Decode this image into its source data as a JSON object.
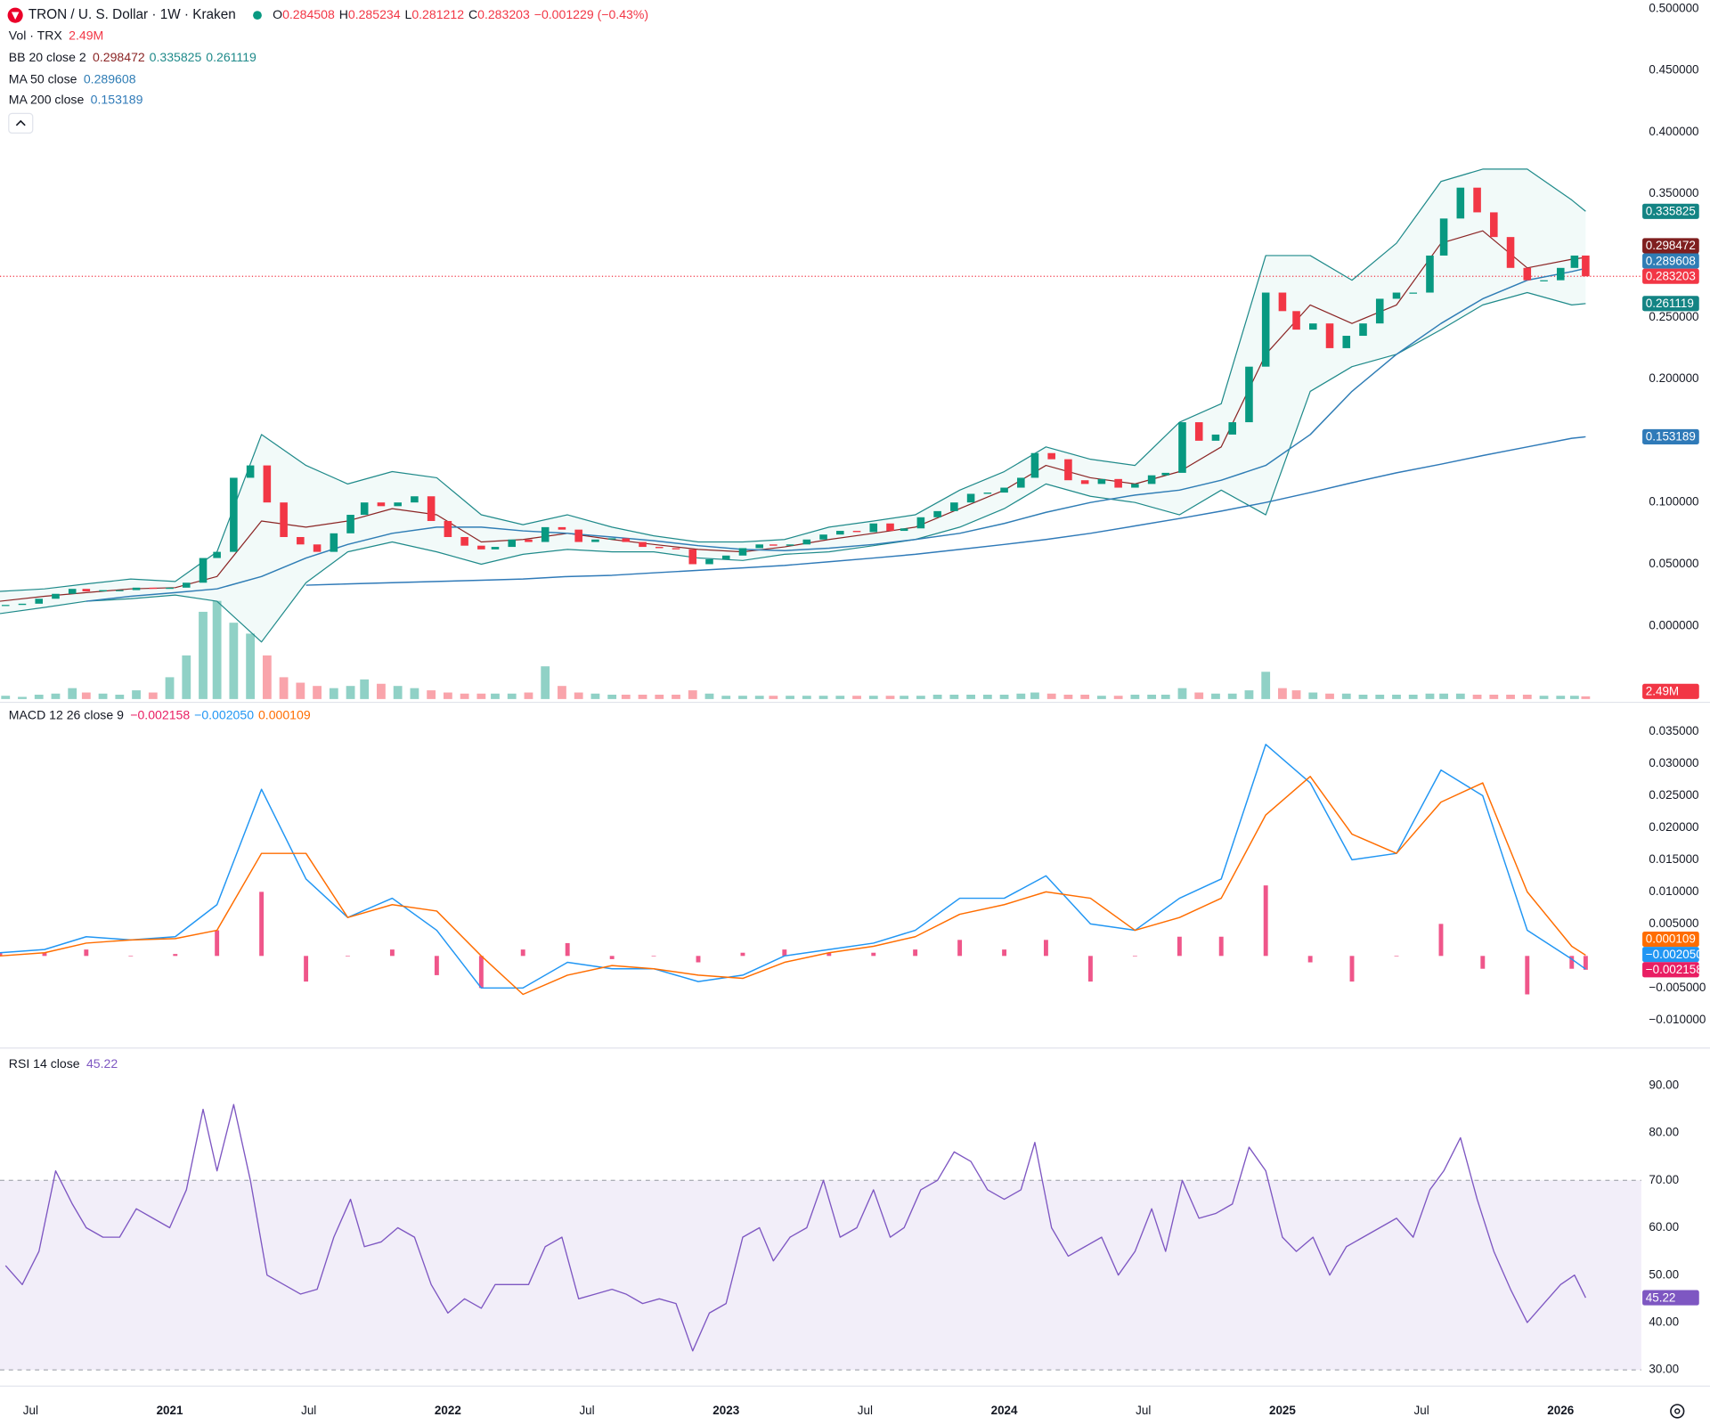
{
  "header": {
    "title": "TRON / U. S. Dollar · 1W · Kraken",
    "ohlc": [
      {
        "label": "O",
        "value": 0.284508
      },
      {
        "label": "H",
        "value": 0.285234
      },
      {
        "label": "L",
        "value": 0.281212
      },
      {
        "label": "C",
        "value": 0.283203
      }
    ],
    "change": "−0.001229 (−0.43%)"
  },
  "chart_data": [
    {
      "type": "candlestick",
      "up_color": "#089981",
      "down_color": "#f23645",
      "grid": false,
      "x": [
        2020.41,
        2020.47,
        2020.53,
        2020.59,
        2020.65,
        2020.7,
        2020.76,
        2020.82,
        2020.88,
        2020.94,
        2021,
        2021.06,
        2021.12,
        2021.17,
        2021.23,
        2021.29,
        2021.35,
        2021.41,
        2021.47,
        2021.53,
        2021.59,
        2021.65,
        2021.7,
        2021.76,
        2021.82,
        2021.88,
        2021.94,
        2022,
        2022.06,
        2022.12,
        2022.17,
        2022.23,
        2022.29,
        2022.35,
        2022.41,
        2022.47,
        2022.53,
        2022.59,
        2022.64,
        2022.7,
        2022.76,
        2022.82,
        2022.88,
        2022.94,
        2023,
        2023.06,
        2023.12,
        2023.17,
        2023.23,
        2023.29,
        2023.35,
        2023.41,
        2023.47,
        2023.53,
        2023.59,
        2023.64,
        2023.7,
        2023.76,
        2023.82,
        2023.88,
        2023.94,
        2024,
        2024.06,
        2024.11,
        2024.17,
        2024.23,
        2024.29,
        2024.35,
        2024.41,
        2024.47,
        2024.53,
        2024.58,
        2024.64,
        2024.7,
        2024.76,
        2024.82,
        2024.88,
        2024.94,
        2025,
        2025.05,
        2025.11,
        2025.17,
        2025.23,
        2025.29,
        2025.35,
        2025.41,
        2025.47,
        2025.53,
        2025.58,
        2025.64,
        2025.7,
        2025.76,
        2025.82,
        2025.88,
        2025.94,
        2026,
        2026.05,
        2026.09
      ],
      "values": [
        0.017,
        0.018,
        0.022,
        0.026,
        0.03,
        0.028,
        0.029,
        0.029,
        0.031,
        0.03,
        0.031,
        0.035,
        0.055,
        0.06,
        0.12,
        0.13,
        0.1,
        0.072,
        0.066,
        0.06,
        0.075,
        0.09,
        0.1,
        0.097,
        0.1,
        0.105,
        0.085,
        0.072,
        0.065,
        0.062,
        0.064,
        0.07,
        0.068,
        0.08,
        0.078,
        0.068,
        0.07,
        0.071,
        0.068,
        0.064,
        0.063,
        0.062,
        0.05,
        0.054,
        0.057,
        0.063,
        0.066,
        0.065,
        0.066,
        0.07,
        0.074,
        0.077,
        0.076,
        0.083,
        0.077,
        0.079,
        0.088,
        0.093,
        0.1,
        0.107,
        0.108,
        0.112,
        0.12,
        0.14,
        0.135,
        0.118,
        0.115,
        0.119,
        0.112,
        0.115,
        0.122,
        0.124,
        0.165,
        0.15,
        0.155,
        0.165,
        0.21,
        0.27,
        0.255,
        0.24,
        0.245,
        0.225,
        0.235,
        0.245,
        0.265,
        0.27,
        0.27,
        0.3,
        0.33,
        0.355,
        0.335,
        0.315,
        0.29,
        0.28,
        0.28,
        0.29,
        0.3,
        0.283203
      ],
      "xlim": [
        2020.39,
        2026.29
      ],
      "xticks": [
        {
          "value": 2020.5,
          "label": "Jul"
        },
        2021,
        {
          "value": 2021.5,
          "label": "Jul"
        },
        2022,
        {
          "value": 2022.5,
          "label": "Jul"
        },
        2023,
        {
          "value": 2023.5,
          "label": "Jul"
        },
        2024,
        {
          "value": 2024.5,
          "label": "Jul"
        },
        2025,
        {
          "value": 2025.5,
          "label": "Jul"
        },
        2026
      ],
      "ylim": [
        -0.061,
        0.507
      ],
      "yticks": [
        {
          "value": 0,
          "label": "0.000000"
        },
        {
          "value": 0.05,
          "label": "0.050000"
        },
        {
          "value": 0.1,
          "label": "0.100000"
        },
        {
          "value": 0.15,
          "label": "0.150000"
        },
        {
          "value": 0.2,
          "label": "0.200000"
        },
        {
          "value": 0.25,
          "label": "0.250000"
        },
        {
          "value": 0.3,
          "label": "0.300000"
        },
        {
          "value": 0.35,
          "label": "0.350000"
        },
        {
          "value": 0.4,
          "label": "0.400000"
        },
        {
          "value": 0.45,
          "label": "0.450000"
        },
        {
          "value": 0.5,
          "label": "0.500000"
        }
      ],
      "volume": {
        "name": "Vol · TRX",
        "last_label": "2.49M",
        "ylim": [
          0,
          100
        ],
        "values": [
          3,
          2,
          4,
          5,
          10,
          6,
          5,
          4,
          8,
          6,
          20,
          40,
          80,
          90,
          70,
          60,
          40,
          20,
          15,
          12,
          10,
          12,
          18,
          14,
          12,
          10,
          8,
          6,
          5,
          5,
          5,
          5,
          6,
          30,
          12,
          6,
          5,
          4,
          4,
          4,
          4,
          4,
          8,
          5,
          3,
          3,
          3,
          3,
          3,
          3,
          3,
          3,
          3,
          3,
          3,
          3,
          3,
          4,
          4,
          4,
          4,
          4,
          5,
          6,
          5,
          4,
          4,
          3,
          3,
          4,
          4,
          4,
          10,
          6,
          5,
          5,
          8,
          25,
          10,
          8,
          6,
          5,
          5,
          4,
          4,
          4,
          4,
          5,
          5,
          5,
          4,
          4,
          4,
          4,
          3,
          3,
          3,
          2.49
        ]
      },
      "indicator_x": [
        2020.39,
        2020.55,
        2020.7,
        2020.86,
        2021.02,
        2021.17,
        2021.33,
        2021.49,
        2021.64,
        2021.8,
        2021.96,
        2022.12,
        2022.27,
        2022.43,
        2022.59,
        2022.74,
        2022.9,
        2023.06,
        2023.21,
        2023.37,
        2023.53,
        2023.68,
        2023.84,
        2024,
        2024.15,
        2024.31,
        2024.47,
        2024.63,
        2024.78,
        2024.94,
        2025.1,
        2025.25,
        2025.41,
        2025.57,
        2025.72,
        2025.88,
        2026.04,
        2026.09
      ],
      "bb": {
        "name": "BB 20 close 2",
        "basis_color": "#8b2525",
        "band_color": "#1f8a8a",
        "fill_color": "#089981",
        "basis": [
          0.02,
          0.024,
          0.027,
          0.03,
          0.031,
          0.04,
          0.085,
          0.08,
          0.085,
          0.095,
          0.09,
          0.068,
          0.07,
          0.075,
          0.07,
          0.066,
          0.062,
          0.06,
          0.064,
          0.07,
          0.075,
          0.08,
          0.095,
          0.11,
          0.13,
          0.12,
          0.115,
          0.125,
          0.145,
          0.22,
          0.26,
          0.245,
          0.26,
          0.31,
          0.32,
          0.29,
          0.297,
          0.298472
        ],
        "upper": [
          0.028,
          0.03,
          0.034,
          0.038,
          0.036,
          0.06,
          0.155,
          0.13,
          0.115,
          0.125,
          0.12,
          0.09,
          0.082,
          0.09,
          0.08,
          0.073,
          0.068,
          0.068,
          0.07,
          0.08,
          0.085,
          0.09,
          0.11,
          0.125,
          0.145,
          0.135,
          0.13,
          0.165,
          0.18,
          0.3,
          0.3,
          0.28,
          0.31,
          0.36,
          0.37,
          0.37,
          0.345,
          0.335825
        ],
        "lower": [
          0.01,
          0.015,
          0.02,
          0.022,
          0.025,
          0.02,
          -0.013,
          0.035,
          0.06,
          0.068,
          0.06,
          0.05,
          0.058,
          0.062,
          0.06,
          0.06,
          0.055,
          0.053,
          0.058,
          0.06,
          0.065,
          0.07,
          0.08,
          0.095,
          0.115,
          0.105,
          0.1,
          0.09,
          0.11,
          0.09,
          0.19,
          0.21,
          0.22,
          0.24,
          0.26,
          0.27,
          0.26,
          0.261119
        ]
      },
      "ma": [
        {
          "name": "MA 50 close",
          "color": "#2f7db5",
          "values": [
            null,
            null,
            0.02,
            0.024,
            0.027,
            0.03,
            0.04,
            0.055,
            0.066,
            0.075,
            0.08,
            0.08,
            0.077,
            0.075,
            0.072,
            0.069,
            0.065,
            0.062,
            0.061,
            0.063,
            0.066,
            0.07,
            0.075,
            0.083,
            0.092,
            0.1,
            0.106,
            0.11,
            0.118,
            0.13,
            0.155,
            0.19,
            0.22,
            0.245,
            0.265,
            0.28,
            0.287,
            0.289608
          ]
        },
        {
          "name": "MA 200 close",
          "color": "#2f7ab8",
          "values": [
            null,
            null,
            null,
            null,
            null,
            null,
            null,
            0.033,
            0.034,
            0.035,
            0.036,
            0.037,
            0.038,
            0.04,
            0.041,
            0.043,
            0.045,
            0.047,
            0.049,
            0.052,
            0.055,
            0.058,
            0.062,
            0.066,
            0.07,
            0.075,
            0.081,
            0.087,
            0.093,
            0.1,
            0.108,
            0.116,
            0.124,
            0.131,
            0.138,
            0.145,
            0.152,
            0.153189
          ]
        }
      ]
    },
    {
      "type": "macd",
      "name": "MACD 12 26 close 9",
      "x": [
        2020.39,
        2020.55,
        2020.7,
        2020.86,
        2021.02,
        2021.17,
        2021.33,
        2021.49,
        2021.64,
        2021.8,
        2021.96,
        2022.12,
        2022.27,
        2022.43,
        2022.59,
        2022.74,
        2022.9,
        2023.06,
        2023.21,
        2023.37,
        2023.53,
        2023.68,
        2023.84,
        2024,
        2024.15,
        2024.31,
        2024.47,
        2024.63,
        2024.78,
        2024.94,
        2025.1,
        2025.25,
        2025.41,
        2025.57,
        2025.72,
        2025.88,
        2026.04,
        2026.09
      ],
      "histogram": {
        "color": "#e91e63",
        "values": [
          0.0005,
          0.0005,
          0.001,
          0,
          0.0003,
          0.004,
          0.01,
          -0.004,
          0,
          0.001,
          -0.003,
          -0.005,
          0.001,
          0.002,
          -0.0005,
          0,
          -0.001,
          0.0005,
          0.001,
          0.0005,
          0.0005,
          0.001,
          0.0025,
          0.001,
          0.0025,
          -0.004,
          0,
          0.003,
          0.003,
          0.011,
          -0.001,
          -0.004,
          0,
          0.005,
          -0.002,
          -0.006,
          -0.002,
          -0.002158
        ]
      },
      "macd": {
        "color": "#2196f3",
        "values": [
          0.0005,
          0.001,
          0.003,
          0.0025,
          0.003,
          0.008,
          0.026,
          0.012,
          0.006,
          0.009,
          0.004,
          -0.005,
          -0.005,
          -0.001,
          -0.002,
          -0.002,
          -0.004,
          -0.003,
          0,
          0.001,
          0.002,
          0.004,
          0.009,
          0.009,
          0.0125,
          0.005,
          0.004,
          0.009,
          0.012,
          0.033,
          0.027,
          0.015,
          0.016,
          0.029,
          0.025,
          0.004,
          -0.0005,
          -0.00205
        ]
      },
      "signal": {
        "color": "#ff6d00",
        "values": [
          0,
          0.0005,
          0.002,
          0.0025,
          0.0027,
          0.004,
          0.016,
          0.016,
          0.006,
          0.008,
          0.007,
          0,
          -0.006,
          -0.003,
          -0.0015,
          -0.002,
          -0.003,
          -0.0035,
          -0.001,
          0.0005,
          0.0015,
          0.003,
          0.0065,
          0.008,
          0.01,
          0.009,
          0.004,
          0.006,
          0.009,
          0.022,
          0.028,
          0.019,
          0.016,
          0.024,
          0.027,
          0.01,
          0.0015,
          0.000109
        ]
      },
      "legend_labels": [
        "−0.002158",
        "−0.002050",
        "0.000109"
      ],
      "ylim": [
        -0.0142,
        0.0394
      ],
      "yticks": [
        {
          "value": -0.01,
          "label": "−0.010000"
        },
        {
          "value": -0.005,
          "label": "−0.005000"
        },
        {
          "value": 0,
          "label": "0.000000"
        },
        {
          "value": 0.005,
          "label": "0.005000"
        },
        {
          "value": 0.01,
          "label": "0.010000"
        },
        {
          "value": 0.015,
          "label": "0.015000"
        },
        {
          "value": 0.02,
          "label": "0.020000"
        },
        {
          "value": 0.025,
          "label": "0.025000"
        },
        {
          "value": 0.03,
          "label": "0.030000"
        },
        {
          "value": 0.035,
          "label": "0.035000"
        }
      ]
    },
    {
      "type": "line",
      "name": "RSI 14 close",
      "color": "#7e57c2",
      "band": [
        30,
        70
      ],
      "band_color": "#7e57c2",
      "x": [
        2020.41,
        2020.47,
        2020.53,
        2020.59,
        2020.65,
        2020.7,
        2020.76,
        2020.82,
        2020.88,
        2020.94,
        2021,
        2021.06,
        2021.12,
        2021.17,
        2021.23,
        2021.29,
        2021.35,
        2021.41,
        2021.47,
        2021.53,
        2021.59,
        2021.65,
        2021.7,
        2021.76,
        2021.82,
        2021.88,
        2021.94,
        2022,
        2022.06,
        2022.12,
        2022.17,
        2022.23,
        2022.29,
        2022.35,
        2022.41,
        2022.47,
        2022.53,
        2022.59,
        2022.64,
        2022.7,
        2022.76,
        2022.82,
        2022.88,
        2022.94,
        2023,
        2023.06,
        2023.12,
        2023.17,
        2023.23,
        2023.29,
        2023.35,
        2023.41,
        2023.47,
        2023.53,
        2023.59,
        2023.64,
        2023.7,
        2023.76,
        2023.82,
        2023.88,
        2023.94,
        2024,
        2024.06,
        2024.11,
        2024.17,
        2024.23,
        2024.29,
        2024.35,
        2024.41,
        2024.47,
        2024.53,
        2024.58,
        2024.64,
        2024.7,
        2024.76,
        2024.82,
        2024.88,
        2024.94,
        2025,
        2025.05,
        2025.11,
        2025.17,
        2025.23,
        2025.29,
        2025.35,
        2025.41,
        2025.47,
        2025.53,
        2025.58,
        2025.64,
        2025.7,
        2025.76,
        2025.82,
        2025.88,
        2025.94,
        2026,
        2026.05,
        2026.09
      ],
      "values": [
        52,
        48,
        55,
        72,
        65,
        60,
        58,
        58,
        64,
        62,
        60,
        68,
        85,
        72,
        86,
        70,
        50,
        48,
        46,
        47,
        58,
        66,
        56,
        57,
        60,
        58,
        48,
        42,
        45,
        43,
        48,
        48,
        48,
        56,
        58,
        45,
        46,
        47,
        46,
        44,
        45,
        44,
        34,
        42,
        44,
        58,
        60,
        53,
        58,
        60,
        70,
        58,
        60,
        68,
        58,
        60,
        68,
        70,
        76,
        74,
        68,
        66,
        68,
        78,
        60,
        54,
        56,
        58,
        50,
        55,
        64,
        55,
        70,
        62,
        63,
        65,
        77,
        72,
        58,
        55,
        58,
        50,
        56,
        58,
        60,
        62,
        58,
        68,
        72,
        79,
        66,
        55,
        47,
        40,
        44,
        48,
        50,
        45.22
      ],
      "ylim": [
        26.8,
        97.7
      ],
      "yticks": [
        {
          "value": 30,
          "label": "30.00"
        },
        {
          "value": 40,
          "label": "40.00"
        },
        {
          "value": 50,
          "label": "50.00"
        },
        {
          "value": 60,
          "label": "60.00"
        },
        {
          "value": 70,
          "label": "70.00"
        },
        {
          "value": 80,
          "label": "80.00"
        },
        {
          "value": 90,
          "label": "90.00"
        }
      ]
    }
  ]
}
